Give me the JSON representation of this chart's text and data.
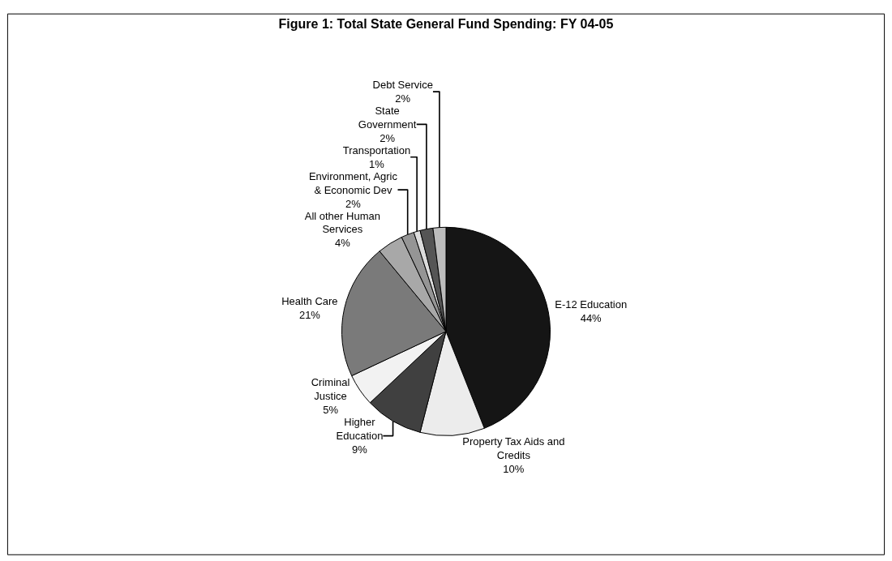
{
  "chart_data": {
    "type": "pie",
    "title": "Figure 1: Total State General Fund Spending: FY 04-05",
    "categories": [
      "E-12 Education",
      "Property Tax Aids and Credits",
      "Higher Education",
      "Criminal Justice",
      "Health Care",
      "All other Human Services",
      "Environment, Agric & Economic Dev",
      "Transportation",
      "State Government",
      "Debt Service"
    ],
    "values": [
      44,
      10,
      9,
      5,
      21,
      4,
      2,
      1,
      2,
      2
    ],
    "value_labels": [
      "44%",
      "10%",
      "9%",
      "5%",
      "21%",
      "4%",
      "2%",
      "1%",
      "2%",
      "2%"
    ],
    "colors": [
      "#151515",
      "#ececec",
      "#404040",
      "#f2f2f2",
      "#7a7a7a",
      "#a8a8a8",
      "#959595",
      "#dcdcdc",
      "#555555",
      "#bcbcbc"
    ],
    "legend": false
  }
}
